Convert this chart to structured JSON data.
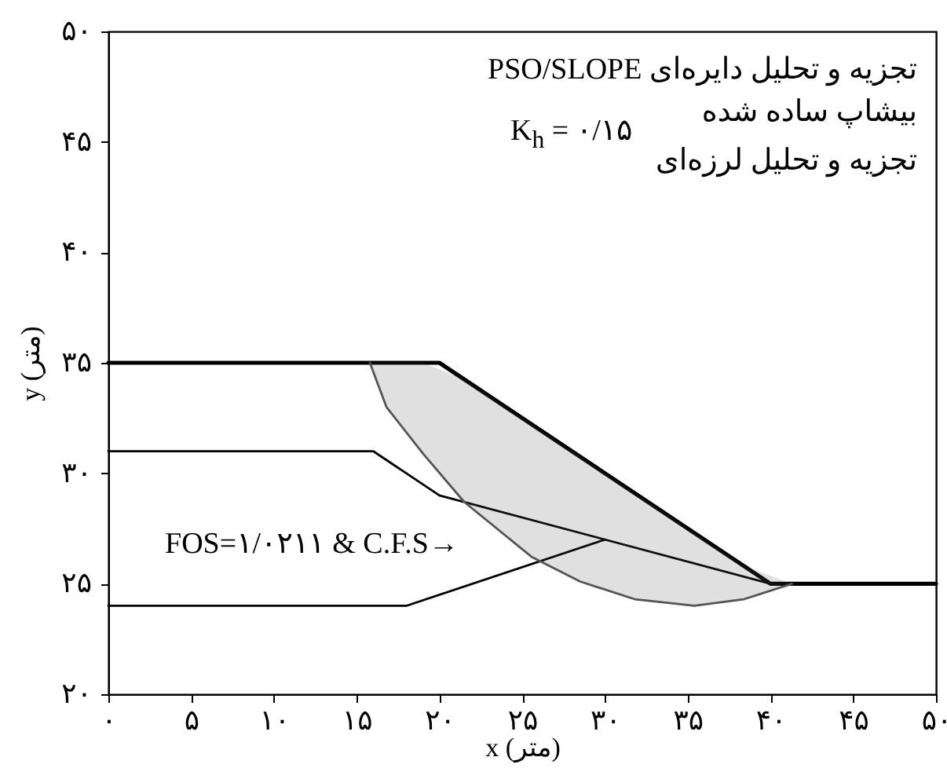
{
  "chart_data": {
    "type": "line",
    "xlabel": "x (متر)",
    "ylabel": "y (متر)",
    "xlim": [
      0,
      50
    ],
    "ylim": [
      20,
      50
    ],
    "xticks": [
      {
        "value": 0,
        "label": "۰"
      },
      {
        "value": 5,
        "label": "۵"
      },
      {
        "value": 10,
        "label": "۱۰"
      },
      {
        "value": 15,
        "label": "۱۵"
      },
      {
        "value": 20,
        "label": "۲۰"
      },
      {
        "value": 25,
        "label": "۲۵"
      },
      {
        "value": 30,
        "label": "۳۰"
      },
      {
        "value": 35,
        "label": "۳۵"
      },
      {
        "value": 40,
        "label": "۴۰"
      },
      {
        "value": 45,
        "label": "۴۵"
      },
      {
        "value": 50,
        "label": "۵۰"
      }
    ],
    "yticks": [
      {
        "value": 20,
        "label": "۲۰"
      },
      {
        "value": 25,
        "label": "۲۵"
      },
      {
        "value": 30,
        "label": "۳۰"
      },
      {
        "value": 35,
        "label": "۳۵"
      },
      {
        "value": 40,
        "label": "۴۰"
      },
      {
        "value": 45,
        "label": "۴۵"
      },
      {
        "value": 50,
        "label": "۵۰"
      }
    ],
    "grid": false,
    "marker": "none",
    "line_style": "solid",
    "series": [
      {
        "color": "#000000",
        "x": [
          0,
          20,
          40,
          50
        ],
        "values": [
          35,
          35,
          25,
          25
        ]
      },
      {
        "color": "#000000",
        "x": [
          0,
          16,
          20,
          40
        ],
        "values": [
          31,
          31,
          29,
          25
        ]
      },
      {
        "color": "#000000",
        "x": [
          0,
          18,
          30
        ],
        "values": [
          24,
          24,
          27
        ]
      },
      {
        "color": "#555555",
        "x": [
          15.8,
          16.8,
          19,
          21.5,
          25.6,
          28.5,
          31.8,
          35.4,
          38.4,
          41.3
        ],
        "values": [
          35,
          33,
          30.9,
          28.7,
          26.2,
          25.1,
          24.3,
          24,
          24.3,
          25
        ],
        "lower": [
          35,
          33,
          30.9,
          28.7,
          26.2,
          25.1,
          24.3,
          24,
          24.3,
          25
        ],
        "upper": [
          35,
          35,
          35,
          34.25,
          32.2,
          30.75,
          29.1,
          27.3,
          25.8,
          25
        ]
      }
    ],
    "annotations": [
      "تجزیه و تحلیل دایره‌ای PSO/SLOPE",
      "بیشاپ ساده شده",
      "K$_{h}$ = ۰/۱۵",
      "تجزیه و تحلیل لرزه‌ای",
      "FOS=۱/۰۲۱۱ & C.F.S→"
    ]
  }
}
